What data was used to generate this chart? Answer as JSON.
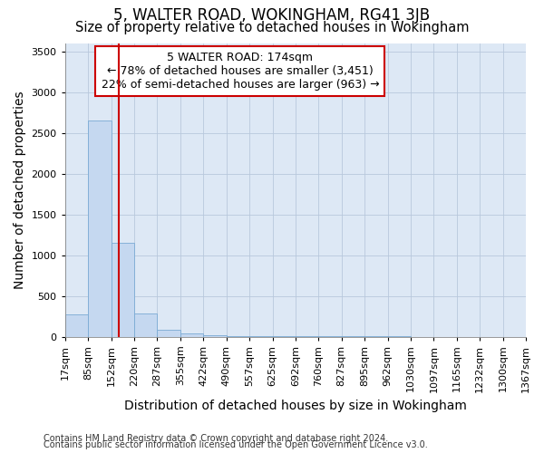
{
  "title": "5, WALTER ROAD, WOKINGHAM, RG41 3JB",
  "subtitle": "Size of property relative to detached houses in Wokingham",
  "xlabel": "Distribution of detached houses by size in Wokingham",
  "ylabel": "Number of detached properties",
  "footnote1": "Contains HM Land Registry data © Crown copyright and database right 2024.",
  "footnote2": "Contains public sector information licensed under the Open Government Licence v3.0.",
  "annotation_line1": "5 WALTER ROAD: 174sqm",
  "annotation_line2": "← 78% of detached houses are smaller (3,451)",
  "annotation_line3": "22% of semi-detached houses are larger (963) →",
  "property_size": 174,
  "bar_color": "#c5d8f0",
  "bar_edgecolor": "#7aaad4",
  "vline_color": "#cc0000",
  "annotation_box_edgecolor": "#cc0000",
  "annotation_box_facecolor": "#ffffff",
  "bin_edges": [
    17,
    85,
    152,
    220,
    287,
    355,
    422,
    490,
    557,
    625,
    692,
    760,
    827,
    895,
    962,
    1030,
    1097,
    1165,
    1232,
    1300,
    1367
  ],
  "bin_counts": [
    270,
    2650,
    1150,
    290,
    90,
    40,
    15,
    8,
    5,
    4,
    3,
    3,
    2,
    2,
    2,
    1,
    1,
    1,
    1,
    1
  ],
  "ylim": [
    0,
    3600
  ],
  "yticks": [
    0,
    500,
    1000,
    1500,
    2000,
    2500,
    3000,
    3500
  ],
  "figure_facecolor": "#ffffff",
  "plot_background_color": "#dde8f5",
  "grid_color": "#b8c8dc",
  "title_fontsize": 12,
  "subtitle_fontsize": 10.5,
  "label_fontsize": 10,
  "tick_fontsize": 8,
  "annotation_fontsize": 9,
  "footnote_fontsize": 7
}
